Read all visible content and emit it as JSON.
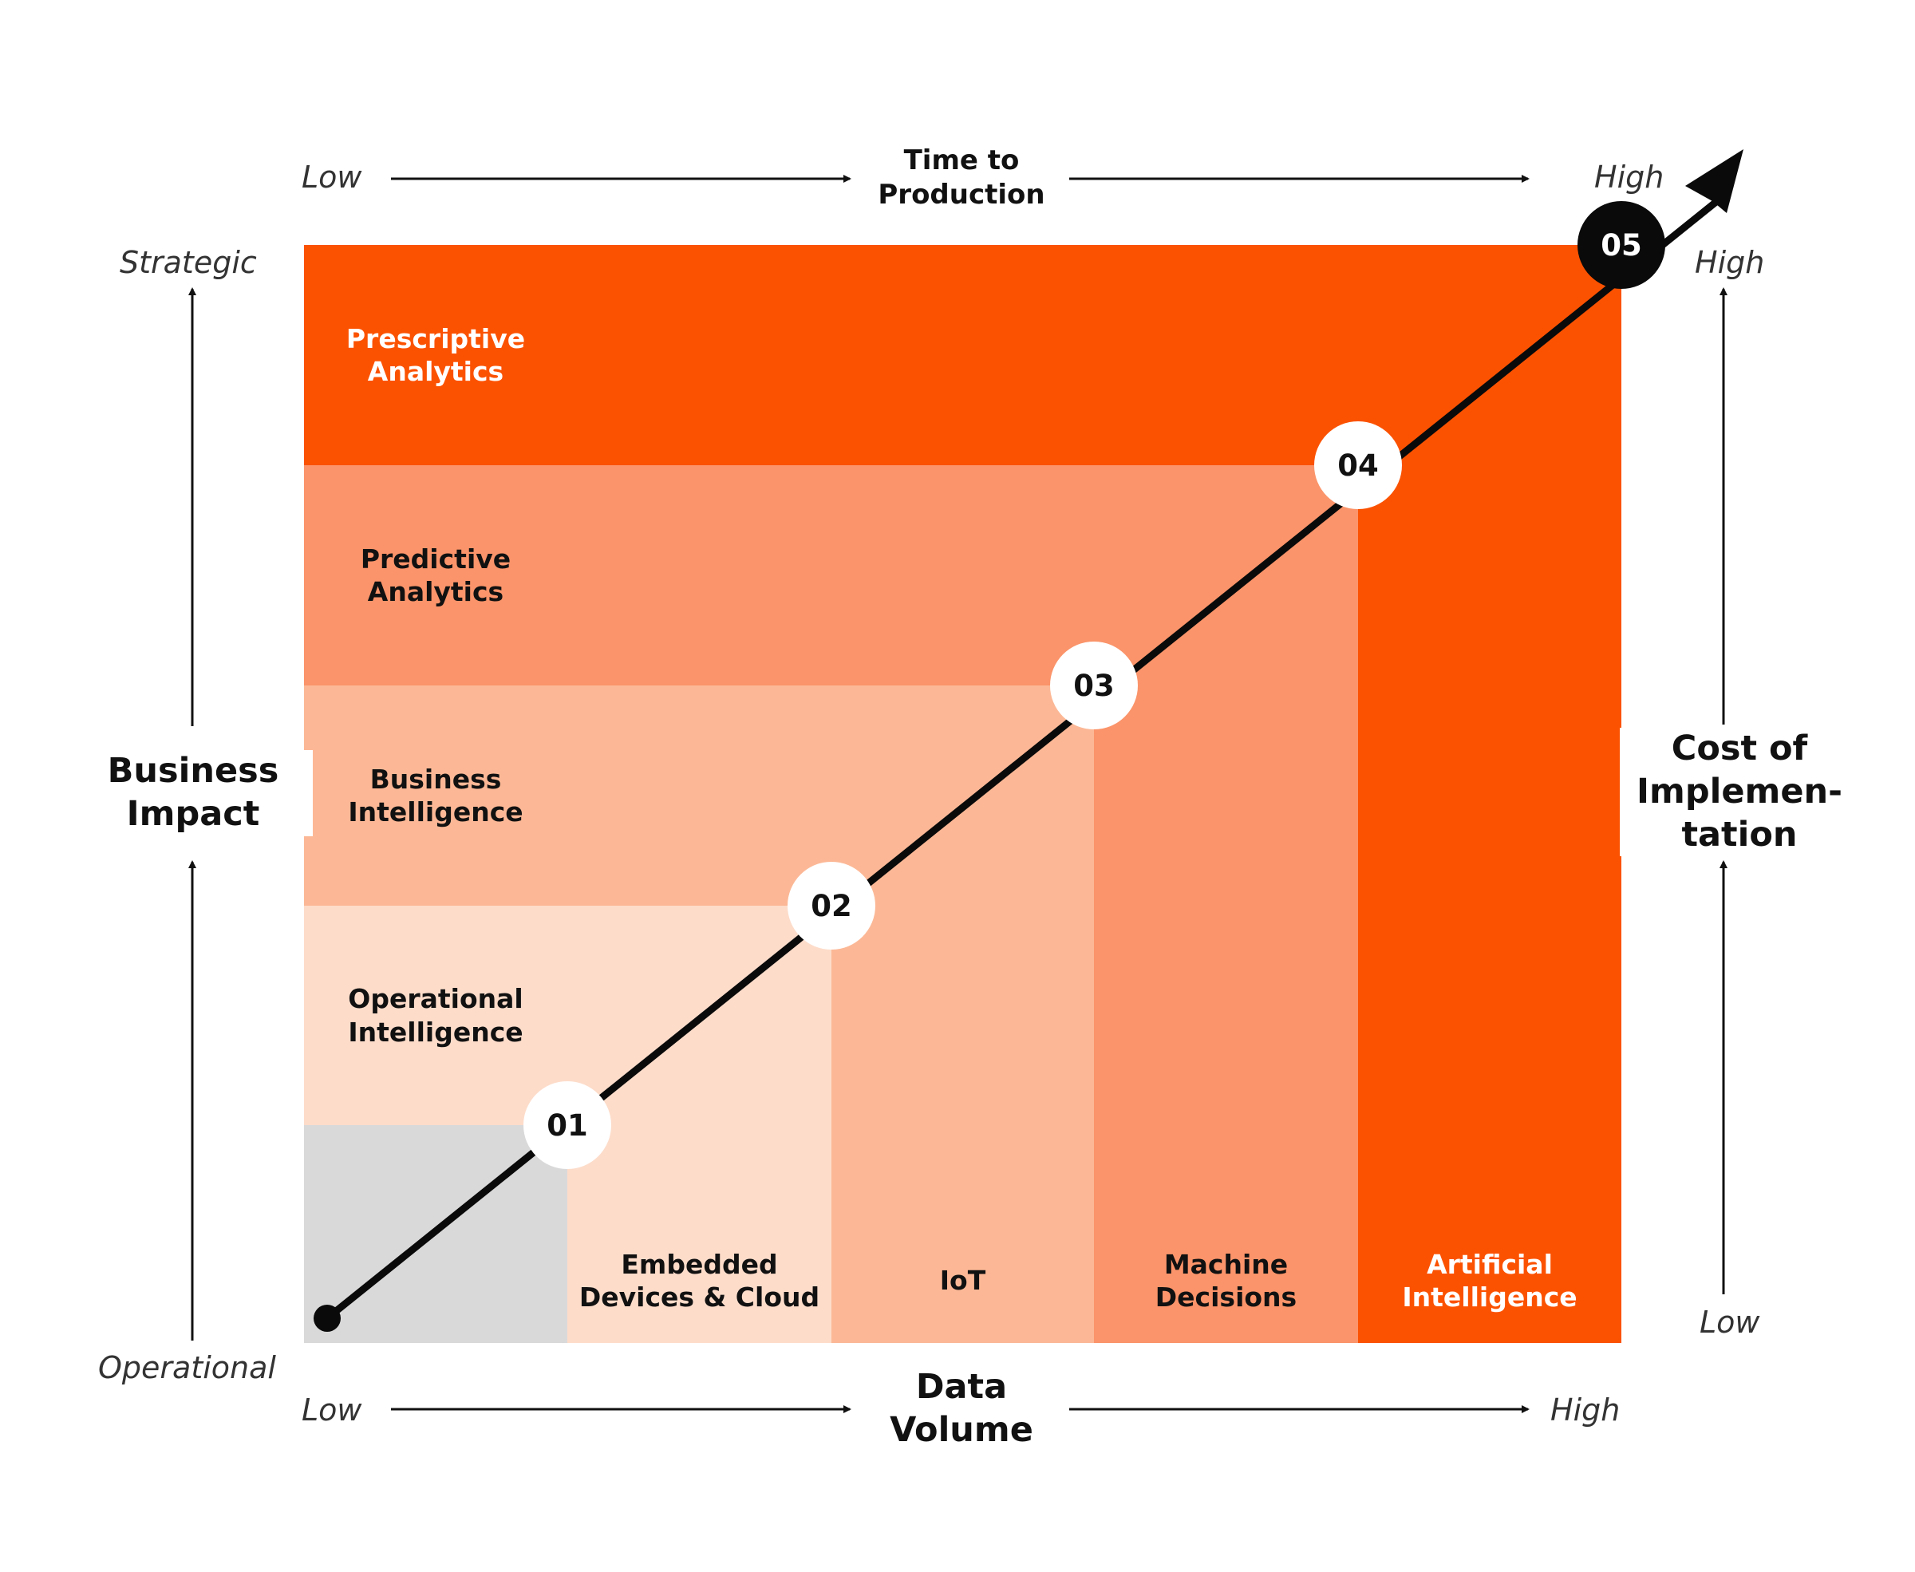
{
  "colors": {
    "row1": "#fddcca",
    "row2": "#fcb896",
    "row3": "#fb946a",
    "row4": "#fb5201",
    "gray": "#d9d9d9",
    "circle_dark": "#0a0a0a",
    "circle_light": "#ffffff"
  },
  "top_axis": {
    "low": "Low",
    "title": "Time to\nProduction",
    "high": "High"
  },
  "bottom_axis": {
    "low": "Low",
    "title": "Data\nVolume",
    "high": "High"
  },
  "left_axis": {
    "top": "Strategic",
    "title": "Business\nImpact",
    "bottom": "Operational"
  },
  "right_axis": {
    "top": "High",
    "title": "Cost of\nImplemen-\ntation",
    "bottom": "Low"
  },
  "rows": [
    {
      "label": "Operational\nIntelligence"
    },
    {
      "label": "Business\nIntelligence"
    },
    {
      "label": "Predictive\nAnalytics"
    },
    {
      "label": "Prescriptive\nAnalytics"
    }
  ],
  "columns": [
    {
      "label": "Embedded\nDevices & Cloud"
    },
    {
      "label": "IoT"
    },
    {
      "label": "Machine\nDecisions"
    },
    {
      "label": "Artificial\nIntelligence"
    }
  ],
  "steps": [
    "01",
    "02",
    "03",
    "04",
    "05"
  ]
}
